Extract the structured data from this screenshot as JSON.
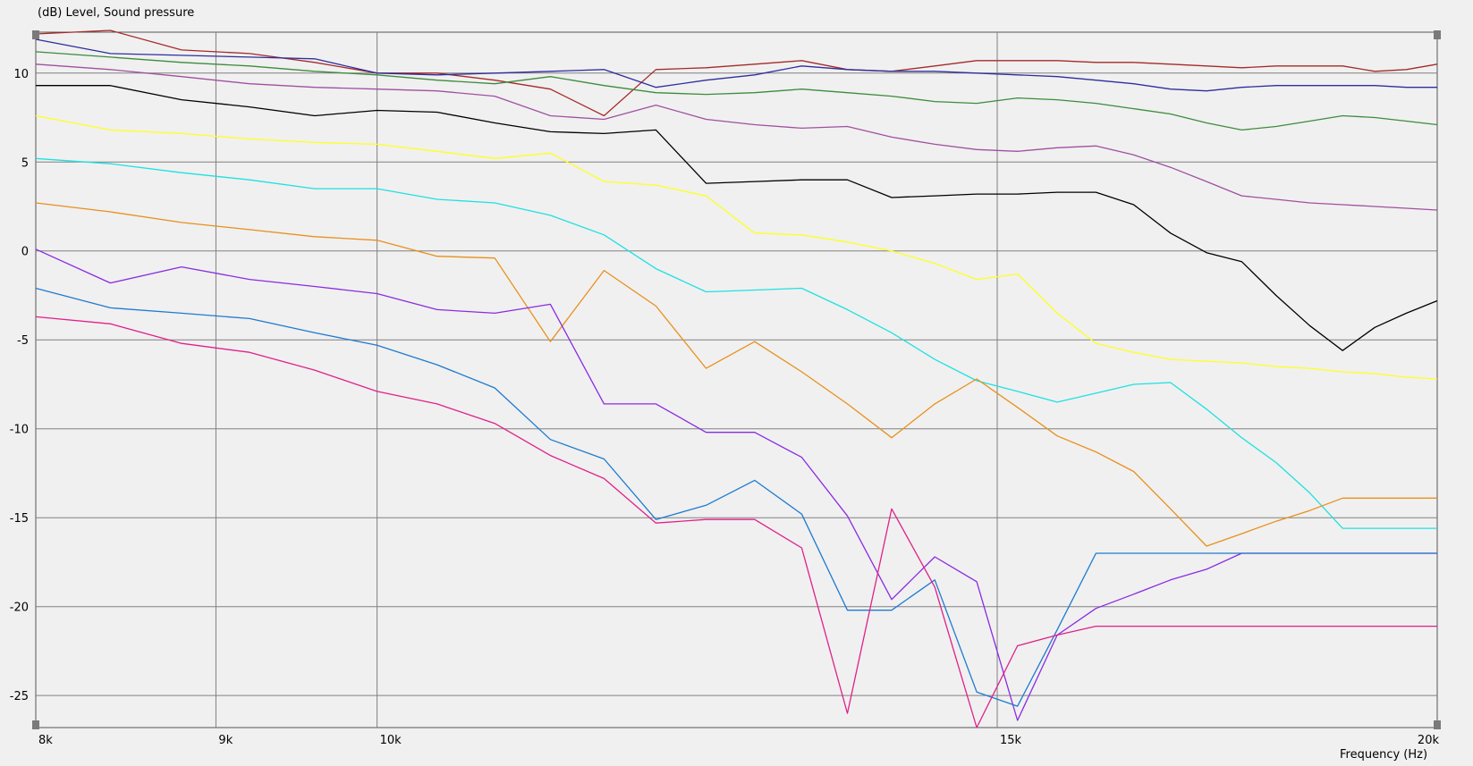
{
  "chart_data": {
    "type": "line",
    "ylabel": "(dB)  Level, Sound pressure",
    "xlabel": "Frequency  (Hz)",
    "x_scale": "log",
    "xlim": [
      8000,
      20000
    ],
    "ylim": [
      -26.8,
      12.3
    ],
    "grid": true,
    "x_ticks": [
      {
        "value": 8000,
        "label": "8k"
      },
      {
        "value": 9000,
        "label": "9k"
      },
      {
        "value": 10000,
        "label": "10k"
      },
      {
        "value": 15000,
        "label": "15k"
      },
      {
        "value": 20000,
        "label": "20k"
      }
    ],
    "y_ticks": [
      {
        "value": 10,
        "label": "10"
      },
      {
        "value": 5,
        "label": "5"
      },
      {
        "value": 0,
        "label": "0"
      },
      {
        "value": -5,
        "label": "-5"
      },
      {
        "value": -10,
        "label": "-10"
      },
      {
        "value": -15,
        "label": "-15"
      },
      {
        "value": -20,
        "label": "-20"
      },
      {
        "value": -25,
        "label": "-25"
      }
    ],
    "x": [
      8000,
      8400,
      8800,
      9200,
      9600,
      10000,
      10400,
      10800,
      11200,
      11600,
      12000,
      12400,
      12800,
      13200,
      13600,
      14000,
      14400,
      14800,
      15200,
      15600,
      16000,
      16400,
      16800,
      17200,
      17600,
      18000,
      18400,
      18800,
      19200,
      19600,
      20000
    ],
    "series": [
      {
        "color": "#a52a2a",
        "values": [
          12.2,
          12.4,
          11.3,
          11.1,
          10.6,
          10.0,
          10.0,
          9.6,
          9.1,
          7.6,
          10.2,
          10.3,
          10.5,
          10.7,
          10.2,
          10.1,
          10.4,
          10.7,
          10.7,
          10.7,
          10.6,
          10.6,
          10.5,
          10.4,
          10.3,
          10.4,
          10.4,
          10.4,
          10.1,
          10.2,
          10.5
        ]
      },
      {
        "color": "#2e2e9e",
        "values": [
          11.9,
          11.1,
          11.0,
          10.9,
          10.8,
          10.0,
          9.9,
          10.0,
          10.1,
          10.2,
          9.2,
          9.6,
          9.9,
          10.4,
          10.2,
          10.1,
          10.1,
          10.0,
          9.9,
          9.8,
          9.6,
          9.4,
          9.1,
          9.0,
          9.2,
          9.3,
          9.3,
          9.3,
          9.3,
          9.2,
          9.2
        ]
      },
      {
        "color": "#3c8c3c",
        "values": [
          11.2,
          10.9,
          10.6,
          10.4,
          10.1,
          9.9,
          9.6,
          9.4,
          9.8,
          9.3,
          8.9,
          8.8,
          8.9,
          9.1,
          8.9,
          8.7,
          8.4,
          8.3,
          8.6,
          8.5,
          8.3,
          8.0,
          7.7,
          7.2,
          6.8,
          7.0,
          7.3,
          7.6,
          7.5,
          7.3,
          7.1
        ]
      },
      {
        "color": "#a050a0",
        "values": [
          10.5,
          10.2,
          9.8,
          9.4,
          9.2,
          9.1,
          9.0,
          8.7,
          7.6,
          7.4,
          8.2,
          7.4,
          7.1,
          6.9,
          7.0,
          6.4,
          6.0,
          5.7,
          5.6,
          5.8,
          5.9,
          5.4,
          4.7,
          3.9,
          3.1,
          2.9,
          2.7,
          2.6,
          2.5,
          2.4,
          2.3
        ]
      },
      {
        "color": "#000000",
        "values": [
          9.3,
          9.3,
          8.5,
          8.1,
          7.6,
          7.9,
          7.8,
          7.2,
          6.7,
          6.6,
          6.8,
          3.8,
          3.9,
          4.0,
          4.0,
          3.0,
          3.1,
          3.2,
          3.2,
          3.3,
          3.3,
          2.6,
          1.0,
          -0.1,
          -0.6,
          -2.5,
          -4.2,
          -5.6,
          -4.3,
          -3.5,
          -2.8
        ]
      },
      {
        "color": "#ffff20",
        "values": [
          7.6,
          6.8,
          6.6,
          6.3,
          6.1,
          6.0,
          5.6,
          5.2,
          5.5,
          3.9,
          3.7,
          3.1,
          1.0,
          0.9,
          0.5,
          0.0,
          -0.7,
          -1.6,
          -1.3,
          -3.5,
          -5.2,
          -5.7,
          -6.1,
          -6.2,
          -6.3,
          -6.5,
          -6.6,
          -6.8,
          -6.9,
          -7.1,
          -7.2
        ]
      },
      {
        "color": "#20e0e0",
        "values": [
          5.2,
          4.9,
          4.4,
          4.0,
          3.5,
          3.5,
          2.9,
          2.7,
          2.0,
          0.9,
          -1.0,
          -2.3,
          -2.2,
          -2.1,
          -3.3,
          -4.6,
          -6.1,
          -7.3,
          -7.9,
          -8.5,
          -8.0,
          -7.5,
          -7.4,
          -8.9,
          -10.5,
          -11.9,
          -13.6,
          -15.6,
          -15.6,
          -15.6,
          -15.6
        ]
      },
      {
        "color": "#e8901c",
        "values": [
          2.7,
          2.2,
          1.6,
          1.2,
          0.8,
          0.6,
          -0.3,
          -0.4,
          -5.1,
          -1.1,
          -3.1,
          -6.6,
          -5.1,
          -6.8,
          -8.6,
          -10.5,
          -8.6,
          -7.2,
          -8.8,
          -10.4,
          -11.3,
          -12.4,
          -14.5,
          -16.6,
          -15.9,
          -15.2,
          -14.6,
          -13.9,
          -13.9,
          -13.9,
          -13.9
        ]
      },
      {
        "color": "#8a2be2",
        "values": [
          0.1,
          -1.8,
          -0.9,
          -1.6,
          -2.0,
          -2.4,
          -3.3,
          -3.5,
          -3.0,
          -8.6,
          -8.6,
          -10.2,
          -10.2,
          -11.6,
          -14.9,
          -19.6,
          -17.2,
          -18.6,
          -26.4,
          -21.6,
          -20.1,
          -19.3,
          -18.5,
          -17.9,
          -17.0,
          -17.0,
          -17.0,
          -17.0,
          -17.0,
          -17.0,
          -17.0
        ]
      },
      {
        "color": "#1e7ad0",
        "values": [
          -2.1,
          -3.2,
          -3.5,
          -3.8,
          -4.6,
          -5.3,
          -6.4,
          -7.7,
          -10.6,
          -11.7,
          -15.1,
          -14.3,
          -12.9,
          -14.8,
          -20.2,
          -20.2,
          -18.5,
          -24.8,
          -25.6,
          -21.3,
          -17.0,
          -17.0,
          -17.0,
          -17.0,
          -17.0,
          -17.0,
          -17.0,
          -17.0,
          -17.0,
          -17.0,
          -17.0
        ]
      },
      {
        "color": "#e0208a",
        "values": [
          -3.7,
          -4.1,
          -5.2,
          -5.7,
          -6.7,
          -7.9,
          -8.6,
          -9.7,
          -11.5,
          -12.8,
          -15.3,
          -15.1,
          -15.1,
          -16.7,
          -26.0,
          -14.5,
          -18.9,
          -26.8,
          -22.2,
          -21.6,
          -21.1,
          -21.1,
          -21.1,
          -21.1,
          -21.1,
          -21.1,
          -21.1,
          -21.1,
          -21.1,
          -21.1,
          -21.1
        ]
      }
    ]
  }
}
